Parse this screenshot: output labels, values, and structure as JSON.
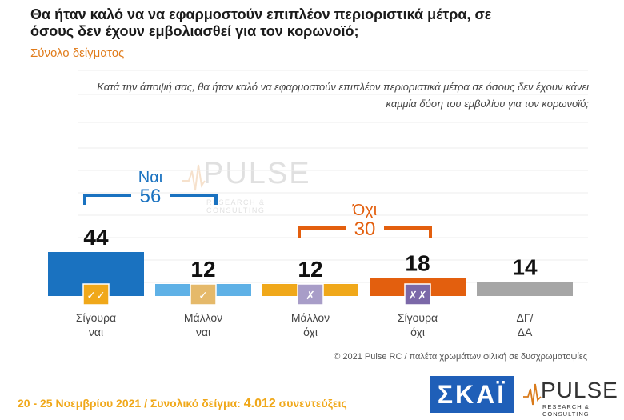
{
  "header": {
    "title": "Θα ήταν καλό να να εφαρμοστούν επιπλέον περιοριστικά μέτρα, σε όσους δεν έχουν εμβολιασθεί για τον κορωνοϊό;",
    "subtitle": "Σύνολο δείγματος",
    "question": "Κατά την άποψή σας, θα ήταν καλό να εφαρμοστούν επιπλέον περιοριστικά μέτρα σε όσους δεν έχουν κάνει καμμία δόση του εμβολίου για τον κορωνοϊό;"
  },
  "chart_data": {
    "type": "bar",
    "categories": [
      "Σίγουρα ναι",
      "Μάλλον ναι",
      "Μάλλον όχι",
      "Σίγουρα όχι",
      "ΔΓ/ ΔΑ"
    ],
    "values": [
      44,
      12,
      12,
      18,
      14
    ],
    "colors": [
      "#1a72c0",
      "#5fb1e6",
      "#f0a81a",
      "#e35f0e",
      "#a6a6a6"
    ],
    "icons": [
      "double-check-icon",
      "check-icon",
      "cross-icon",
      "double-cross-icon",
      ""
    ],
    "icon_glyphs": [
      "✓✓",
      "✓",
      "✗",
      "✗✗",
      ""
    ],
    "icon_colors": [
      "#f0a81a",
      "#e5b96a",
      "#a89dc8",
      "#7b68a8",
      ""
    ],
    "groups": [
      {
        "label": "Ναι",
        "total": "56",
        "color": "#1a72c0",
        "spans": [
          0,
          1
        ]
      },
      {
        "label": "Όχι",
        "total": "30",
        "color": "#e35f0e",
        "spans": [
          2,
          3
        ]
      }
    ],
    "grid": true,
    "ylim": [
      0,
      100
    ]
  },
  "watermark": {
    "word": "PULSE",
    "sub": "RESEARCH & CONSULTING"
  },
  "footer": {
    "note": "© 2021 Pulse RC   /   παλέτα χρωμάτων φιλική σε δυσχρωματοψίες",
    "dates": "20 - 25  Νοεμβρίου 2021  /  Συνολικό δείγμα:",
    "sample": "4.012",
    "sample_suffix": "συνεντεύξεις"
  },
  "logos": {
    "skai": "ΣΚΑΪ",
    "pulse": "PULSE",
    "pulse_sub": "RESEARCH & CONSULTING"
  }
}
